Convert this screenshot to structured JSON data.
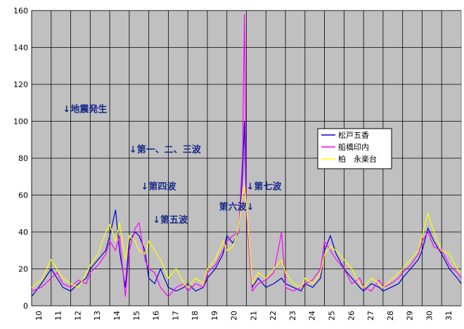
{
  "chart_data": {
    "type": "line",
    "title": "",
    "xlabel": "",
    "ylabel": "",
    "ylim": [
      0,
      160
    ],
    "xlim": [
      10,
      32
    ],
    "y_ticks": [
      "0",
      "20",
      "40",
      "60",
      "80",
      "100",
      "120",
      "140",
      "160"
    ],
    "x_ticks": [
      "10",
      "11",
      "12",
      "13",
      "14",
      "15",
      "16",
      "17",
      "18",
      "19",
      "20",
      "21",
      "22",
      "23",
      "24",
      "25",
      "26",
      "27",
      "28",
      "29",
      "30",
      "31"
    ],
    "grid": true,
    "legend_position": "right",
    "series": [
      {
        "name": "松戸五香",
        "color": "#0000cc",
        "x": [
          10,
          10.5,
          11,
          11.3,
          11.6,
          12,
          12.4,
          12.8,
          13,
          13.4,
          13.8,
          14,
          14.3,
          14.5,
          14.8,
          15,
          15.3,
          15.5,
          15.8,
          16,
          16.3,
          16.6,
          17,
          17.4,
          17.8,
          18,
          18.4,
          18.8,
          19,
          19.4,
          19.8,
          20,
          20.3,
          20.6,
          20.8,
          20.9,
          21,
          21.3,
          21.6,
          22,
          22.4,
          22.8,
          23,
          23.4,
          23.8,
          24,
          24.4,
          24.8,
          25,
          25.3,
          25.6,
          26,
          26.4,
          26.8,
          27,
          27.4,
          27.8,
          28,
          28.4,
          28.8,
          29,
          29.4,
          29.8,
          30,
          30.3,
          30.6,
          31,
          31.4,
          31.8,
          32
        ],
        "values": [
          5,
          12,
          20,
          15,
          10,
          8,
          12,
          15,
          20,
          25,
          30,
          38,
          52,
          30,
          10,
          35,
          40,
          38,
          30,
          15,
          12,
          20,
          10,
          8,
          10,
          12,
          8,
          10,
          15,
          20,
          28,
          38,
          34,
          40,
          70,
          100,
          52,
          10,
          15,
          10,
          12,
          15,
          12,
          10,
          8,
          12,
          10,
          15,
          30,
          38,
          28,
          20,
          15,
          10,
          8,
          12,
          10,
          8,
          10,
          12,
          15,
          20,
          25,
          30,
          42,
          35,
          28,
          20,
          15,
          12
        ]
      },
      {
        "name": "船橋印内",
        "color": "#ff00ff",
        "x": [
          10,
          10.5,
          11,
          11.3,
          11.6,
          12,
          12.4,
          12.8,
          13,
          13.4,
          13.8,
          14,
          14.3,
          14.5,
          14.8,
          15,
          15.3,
          15.5,
          15.8,
          16,
          16.3,
          16.6,
          17,
          17.4,
          17.8,
          18,
          18.4,
          18.8,
          19,
          19.4,
          19.8,
          20,
          20.3,
          20.6,
          20.8,
          20.9,
          21,
          21.3,
          21.6,
          22,
          22.4,
          22.8,
          23,
          23.4,
          23.8,
          24,
          24.4,
          24.8,
          25,
          25.3,
          25.6,
          26,
          26.4,
          26.8,
          27,
          27.4,
          27.8,
          28,
          28.4,
          28.8,
          29,
          29.4,
          29.8,
          30,
          30.3,
          30.6,
          31,
          31.4,
          31.8,
          32
        ],
        "values": [
          8,
          10,
          15,
          18,
          12,
          10,
          14,
          12,
          18,
          22,
          28,
          35,
          30,
          38,
          5,
          30,
          42,
          45,
          25,
          20,
          18,
          10,
          5,
          10,
          12,
          8,
          12,
          10,
          18,
          22,
          30,
          35,
          38,
          40,
          80,
          158,
          50,
          8,
          12,
          14,
          18,
          40,
          10,
          8,
          10,
          12,
          14,
          20,
          35,
          30,
          25,
          20,
          12,
          15,
          10,
          8,
          14,
          10,
          12,
          15,
          18,
          22,
          28,
          35,
          40,
          32,
          30,
          22,
          18,
          15
        ]
      },
      {
        "name": "柏　永楽台",
        "color": "#ffff00",
        "x": [
          10,
          10.5,
          11,
          11.3,
          11.6,
          12,
          12.4,
          12.8,
          13,
          13.4,
          13.8,
          14,
          14.3,
          14.5,
          14.8,
          15,
          15.3,
          15.5,
          15.8,
          16,
          16.3,
          16.6,
          17,
          17.4,
          17.8,
          18,
          18.4,
          18.8,
          19,
          19.4,
          19.8,
          20,
          20.3,
          20.6,
          20.8,
          20.9,
          21,
          21.3,
          21.6,
          22,
          22.4,
          22.8,
          23,
          23.4,
          23.8,
          24,
          24.4,
          24.8,
          25,
          25.3,
          25.6,
          26,
          26.4,
          26.8,
          27,
          27.4,
          27.8,
          28,
          28.4,
          28.8,
          29,
          29.4,
          29.8,
          30,
          30.3,
          30.6,
          31,
          31.4,
          31.8,
          32
        ],
        "values": [
          10,
          14,
          25,
          20,
          15,
          12,
          10,
          18,
          22,
          28,
          40,
          44,
          35,
          45,
          25,
          38,
          35,
          30,
          28,
          35,
          30,
          25,
          15,
          20,
          12,
          10,
          15,
          12,
          20,
          25,
          35,
          30,
          32,
          42,
          60,
          65,
          55,
          12,
          18,
          15,
          20,
          25,
          18,
          12,
          10,
          15,
          12,
          18,
          28,
          32,
          30,
          25,
          20,
          12,
          10,
          15,
          12,
          10,
          14,
          18,
          20,
          25,
          30,
          38,
          50,
          40,
          30,
          28,
          20,
          18
        ]
      }
    ],
    "annotations": [
      {
        "text": "↓地震発生",
        "x": 11.6,
        "y": 105
      },
      {
        "text": "↓第一、二、三波",
        "x": 15.0,
        "y": 83
      },
      {
        "text": "↓第四波",
        "x": 15.6,
        "y": 63
      },
      {
        "text": "↓第五波",
        "x": 16.2,
        "y": 45
      },
      {
        "text": "第六波↓",
        "x": 19.6,
        "y": 52
      },
      {
        "text": "↓第七波",
        "x": 21.0,
        "y": 63
      }
    ]
  }
}
